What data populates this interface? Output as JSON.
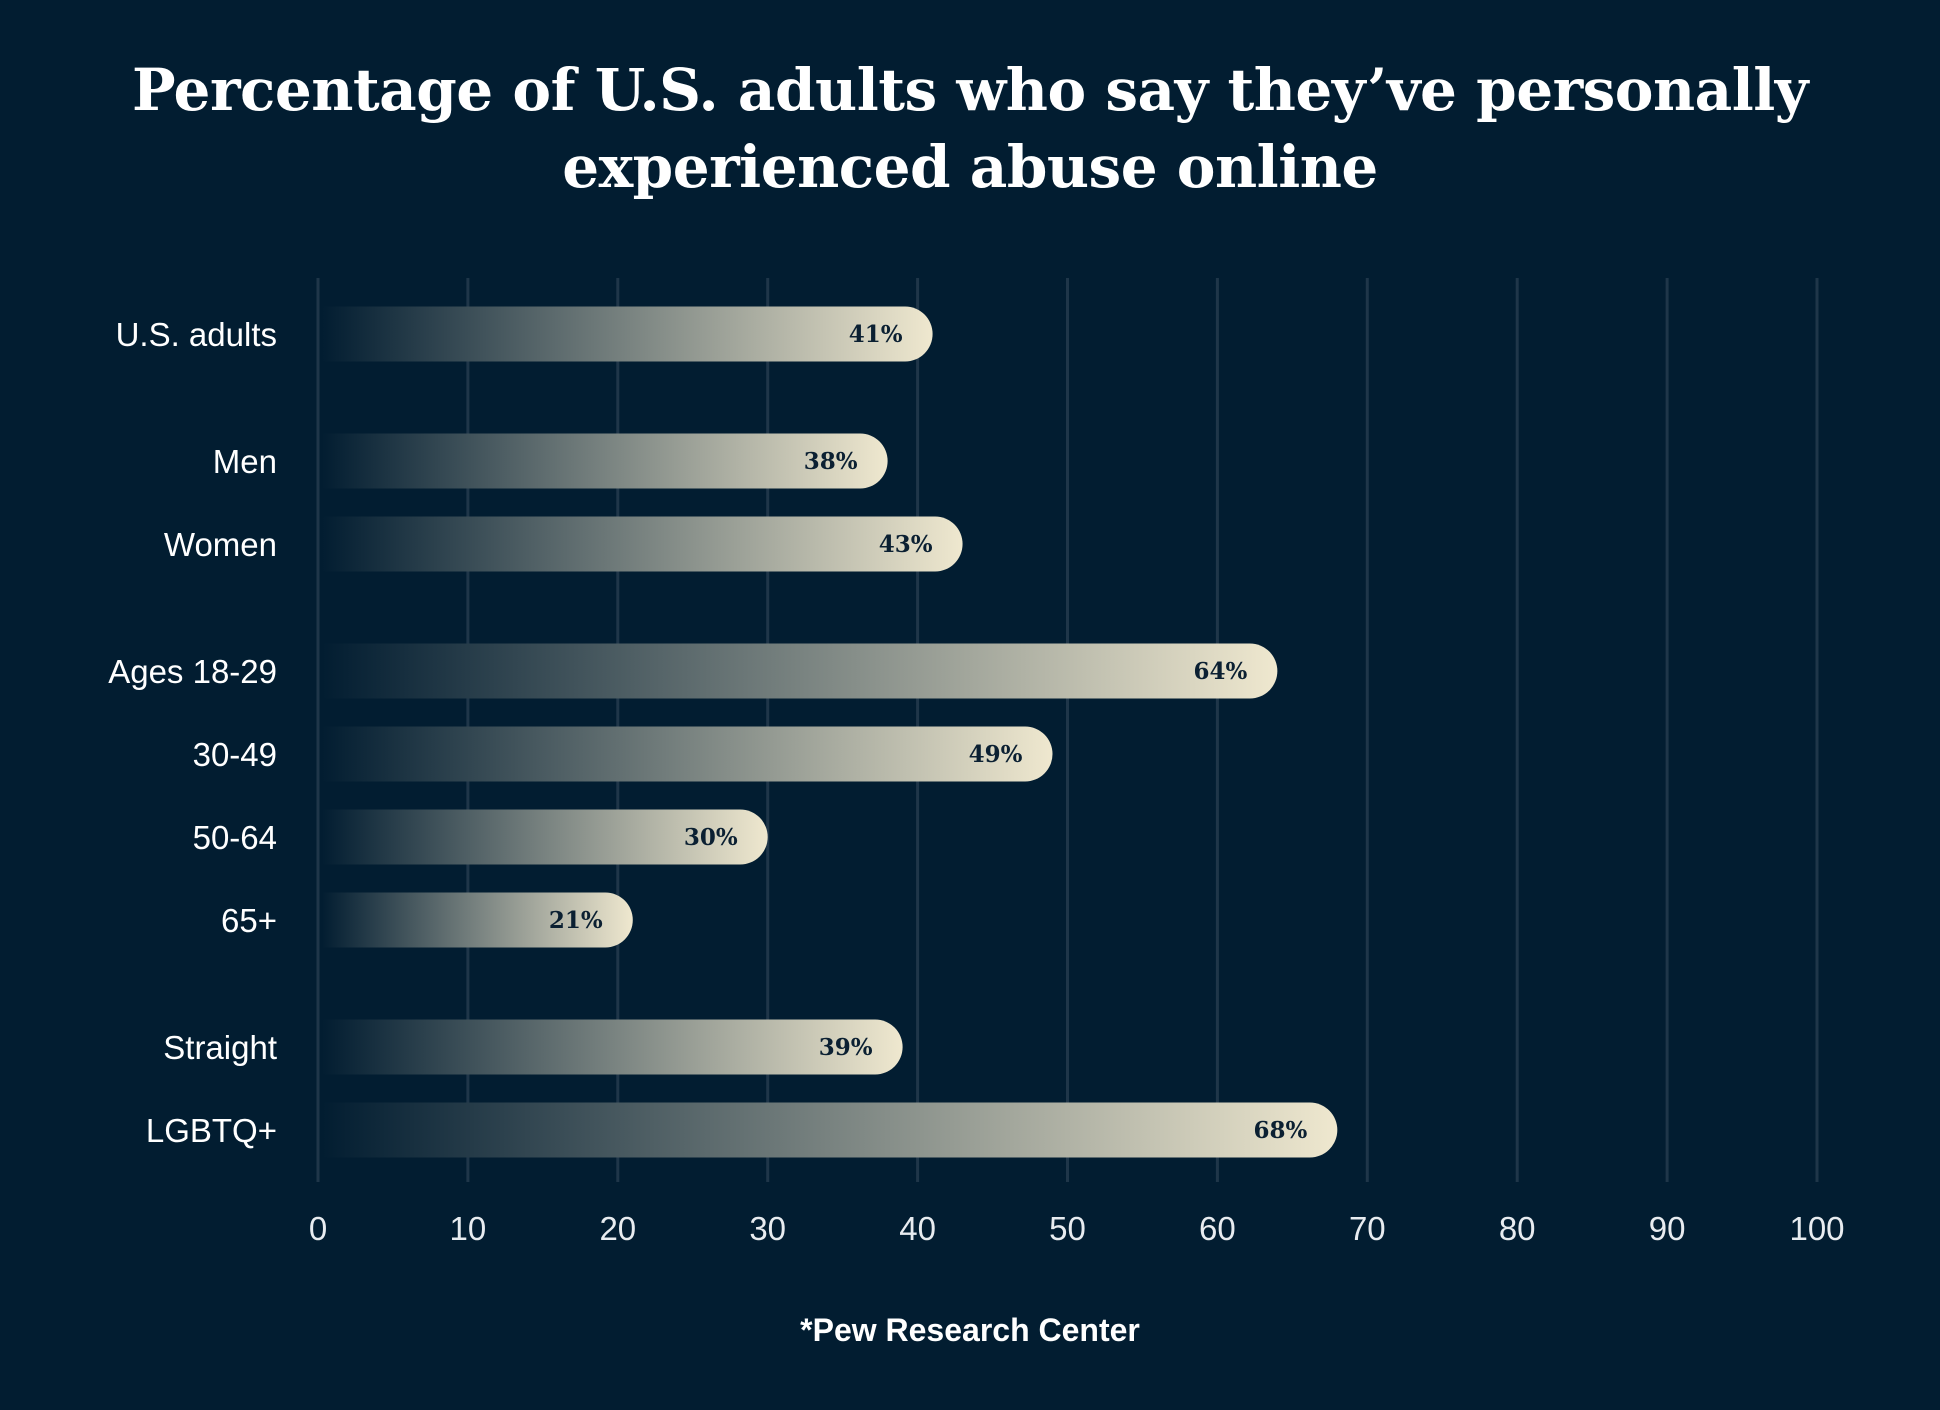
{
  "chart_data": {
    "type": "bar",
    "orientation": "horizontal",
    "title_lines": [
      "Percentage of U.S. adults who say they’ve personally",
      "experienced abuse online"
    ],
    "categories": [
      "U.S. adults",
      "Men",
      "Women",
      "Ages 18-29",
      "30-49",
      "50-64",
      "65+",
      "Straight",
      "LGBTQ+"
    ],
    "groups": [
      [
        "U.S. adults"
      ],
      [
        "Men",
        "Women"
      ],
      [
        "Ages 18-29",
        "30-49",
        "50-64",
        "65+"
      ],
      [
        "Straight",
        "LGBTQ+"
      ]
    ],
    "values": [
      41,
      38,
      43,
      64,
      49,
      30,
      21,
      39,
      68
    ],
    "data_labels": [
      "41%",
      "38%",
      "43%",
      "64%",
      "49%",
      "30%",
      "21%",
      "39%",
      "68%"
    ],
    "xlim": [
      0,
      100
    ],
    "xticks": [
      "0",
      "10",
      "20",
      "30",
      "40",
      "50",
      "60",
      "70",
      "80",
      "90",
      "100"
    ],
    "grid": "vertical",
    "xlabel": "",
    "ylabel": "",
    "source": "*Pew Research Center",
    "colors": {
      "background": "#021d31",
      "grid": "#1f3649",
      "bar_start": "#021d31",
      "bar_end": "#efe8cf",
      "label": "#0b2032"
    }
  }
}
